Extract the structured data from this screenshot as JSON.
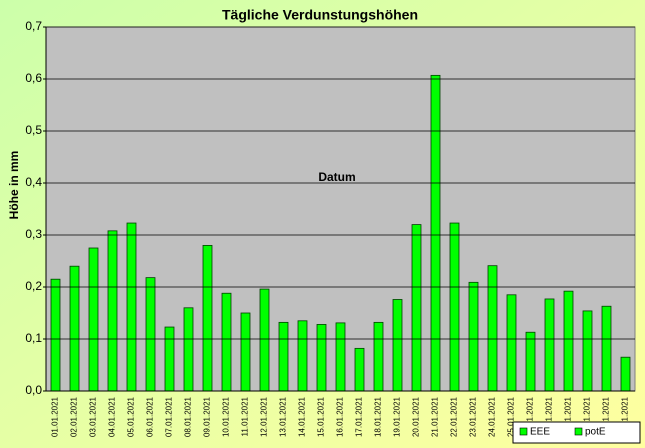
{
  "chart_data": {
    "type": "bar",
    "title": "Tägliche Verdunstungshöhen",
    "y_label": "Höhe in mm",
    "x_label": "Datum",
    "categories": [
      "01.01.2021",
      "02.01.2021",
      "03.01.2021",
      "04.01.2021",
      "05.01.2021",
      "06.01.2021",
      "07.01.2021",
      "08.01.2021",
      "09.01.2021",
      "10.01.2021",
      "11.01.2021",
      "12.01.2021",
      "13.01.2021",
      "14.01.2021",
      "15.01.2021",
      "16.01.2021",
      "17.01.2021",
      "18.01.2021",
      "19.01.2021",
      "20.01.2021",
      "21.01.2021",
      "22.01.2021",
      "23.01.2021",
      "24.01.2021",
      "25.01.2021",
      "26.01.2021",
      "27.01.2021",
      "28.01.2021",
      "29.01.2021",
      "30.01.2021",
      "31.01.2021"
    ],
    "values": [
      0.215,
      0.24,
      0.275,
      0.308,
      0.323,
      0.218,
      0.123,
      0.16,
      0.28,
      0.188,
      0.15,
      0.196,
      0.132,
      0.135,
      0.128,
      0.131,
      0.082,
      0.132,
      0.176,
      0.32,
      0.607,
      0.323,
      0.209,
      0.241,
      0.185,
      0.113,
      0.177,
      0.192,
      0.154,
      0.163,
      0.065
    ],
    "color": "#00ff00",
    "legend_entries": [
      "EEE",
      "potE"
    ],
    "ylim": [
      0,
      0.7
    ],
    "yticks": [
      {
        "value": 0,
        "label": "0,0"
      },
      {
        "value": 0.1,
        "label": "0,1"
      },
      {
        "value": 0.2,
        "label": "0,2"
      },
      {
        "value": 0.3,
        "label": "0,3"
      },
      {
        "value": 0.4,
        "label": "0,4"
      },
      {
        "value": 0.5,
        "label": "0,5"
      },
      {
        "value": 0.6,
        "label": "0,6"
      },
      {
        "value": 0.7,
        "label": "0,7"
      }
    ],
    "grid": true
  }
}
